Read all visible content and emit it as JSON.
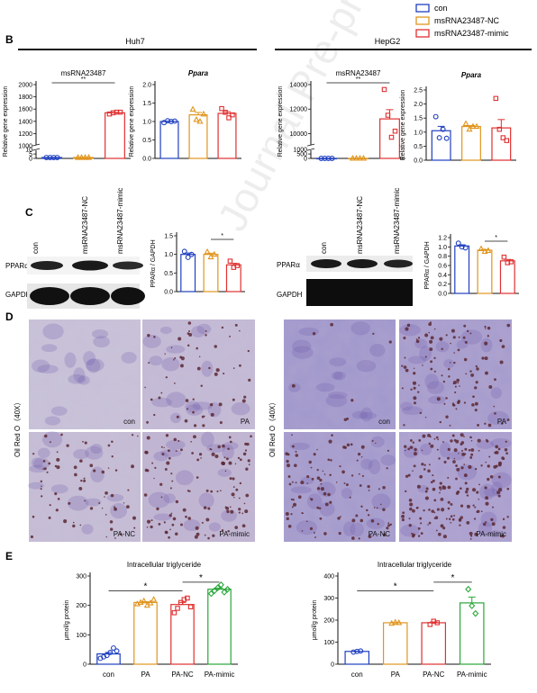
{
  "legend": {
    "items": [
      {
        "label": "con",
        "color": "#1f3fbf"
      },
      {
        "label": "msRNA23487-NC",
        "color": "#e0951f"
      },
      {
        "label": "msRNA23487-mimic",
        "color": "#e03030"
      }
    ]
  },
  "panel_b": {
    "letter": "B",
    "cell_left": "Huh7",
    "cell_right": "HepG2"
  },
  "panel_c": {
    "letter": "C",
    "lane_labels": [
      "con",
      "msRNA23487-NC",
      "msRNA23487-mimic"
    ],
    "protein_label": "PPARα",
    "loading_label": "GAPDH"
  },
  "panel_d": {
    "letter": "D",
    "side_label": "Oil Red O（40X）",
    "image_labels": [
      "con",
      "PA",
      "PA-NC",
      "PA-mimic"
    ]
  },
  "panel_e": {
    "letter": "E"
  },
  "watermark": "Journal Pre-proof",
  "chart_data": [
    {
      "type": "bar",
      "panel": "B-Huh7-msRNA23487",
      "title": "msRNA23487",
      "ylabel": "Relative gene expression",
      "categories": [
        "con",
        "msRNA23487-NC",
        "msRNA23487-mimic"
      ],
      "values": [
        1,
        1,
        1540
      ],
      "points": [
        [
          1,
          1,
          1,
          1
        ],
        [
          1,
          1,
          1,
          1
        ],
        [
          1520,
          1540,
          1550,
          1550
        ]
      ],
      "yticks": [
        "0",
        "5",
        "10",
        "1000",
        "1200",
        "1400",
        "1600",
        "1800",
        "2000"
      ],
      "axis_break": [
        10,
        1000
      ],
      "significance": "**"
    },
    {
      "type": "bar",
      "panel": "B-Huh7-Ppara",
      "title": "Ppara",
      "ylabel": "Relative gene expression",
      "categories": [
        "con",
        "msRNA23487-NC",
        "msRNA23487-mimic"
      ],
      "values": [
        1.0,
        1.18,
        1.22
      ],
      "points": [
        [
          0.97,
          1.02,
          1.0,
          1.01
        ],
        [
          1.33,
          1.05,
          1.0,
          1.2
        ],
        [
          1.35,
          1.25,
          1.1,
          1.18
        ]
      ],
      "yticks": [
        "0.0",
        "0.5",
        "1.0",
        "1.5",
        "2.0"
      ],
      "ylim": [
        0,
        2.0
      ]
    },
    {
      "type": "bar",
      "panel": "B-HepG2-msRNA23487",
      "title": "msRNA23487",
      "ylabel": "Relative gene expression",
      "categories": [
        "con",
        "msRNA23487-NC",
        "msRNA23487-mimic"
      ],
      "values": [
        1,
        1,
        11200
      ],
      "points": [
        [
          1,
          1,
          1,
          1
        ],
        [
          1,
          1,
          1,
          1
        ],
        [
          13600,
          11500,
          9700,
          10200
        ]
      ],
      "yticks": [
        "0",
        "500",
        "1000",
        "10000",
        "12000",
        "14000"
      ],
      "axis_break": [
        1000,
        9000
      ],
      "significance": "**"
    },
    {
      "type": "bar",
      "panel": "B-HepG2-Ppara",
      "title": "Ppara",
      "ylabel": "Relative gene expression",
      "categories": [
        "con",
        "msRNA23487-NC",
        "msRNA23487-mimic"
      ],
      "values": [
        1.05,
        1.2,
        1.15
      ],
      "points": [
        [
          1.55,
          0.8,
          1.1,
          0.78
        ],
        [
          1.3,
          1.1,
          1.2,
          1.2
        ],
        [
          2.2,
          1.1,
          0.8,
          0.7
        ]
      ],
      "yticks": [
        "0.0",
        "0.5",
        "1.0",
        "1.5",
        "2.0",
        "2.5"
      ],
      "ylim": [
        0,
        2.5
      ]
    },
    {
      "type": "bar",
      "panel": "C-Huh7-PPARa",
      "ylabel": "PPARα / GAPDH",
      "categories": [
        "con",
        "msRNA23487-NC",
        "msRNA23487-mimic"
      ],
      "values": [
        1.0,
        1.0,
        0.72
      ],
      "points": [
        [
          1.08,
          0.92,
          1.0
        ],
        [
          1.07,
          0.93,
          1.0
        ],
        [
          0.82,
          0.65,
          0.7
        ]
      ],
      "yticks": [
        "0.0",
        "0.5",
        "1.0",
        "1.5"
      ],
      "ylim": [
        0,
        1.5
      ],
      "significance": "*"
    },
    {
      "type": "bar",
      "panel": "C-HepG2-PPARa",
      "ylabel": "PPARα / GAPDH",
      "categories": [
        "con",
        "msRNA23487-NC",
        "msRNA23487-mimic"
      ],
      "values": [
        1.02,
        0.93,
        0.7
      ],
      "points": [
        [
          1.08,
          1.0,
          0.98
        ],
        [
          0.96,
          0.9,
          0.92
        ],
        [
          0.78,
          0.66,
          0.68
        ]
      ],
      "yticks": [
        "0.0",
        "0.2",
        "0.4",
        "0.6",
        "0.8",
        "1.0",
        "1.2"
      ],
      "ylim": [
        0,
        1.2
      ],
      "significance": "*"
    },
    {
      "type": "bar",
      "panel": "E-Huh7",
      "title": "Intracellular triglyceride",
      "ylabel": "μmol/g protein",
      "categories": [
        "con",
        "PA",
        "PA-NC",
        "PA-mimic"
      ],
      "values": [
        35,
        210,
        203,
        255
      ],
      "points": [
        [
          20,
          25,
          30,
          40,
          55,
          45
        ],
        [
          205,
          210,
          215,
          200,
          208,
          220
        ],
        [
          175,
          190,
          210,
          220,
          225,
          195
        ],
        [
          240,
          250,
          260,
          270,
          245,
          255
        ]
      ],
      "yticks": [
        "0",
        "100",
        "200",
        "300"
      ],
      "ylim": [
        0,
        300
      ],
      "significance": [
        "*",
        "*"
      ]
    },
    {
      "type": "bar",
      "panel": "E-HepG2",
      "title": "Intracellular triglyceride",
      "ylabel": "μmol/g protein",
      "categories": [
        "con",
        "PA",
        "PA-NC",
        "PA-mimic"
      ],
      "values": [
        58,
        188,
        188,
        278
      ],
      "points": [
        [
          55,
          58,
          60
        ],
        [
          185,
          190,
          188
        ],
        [
          180,
          195,
          188
        ],
        [
          340,
          265,
          230
        ]
      ],
      "yticks": [
        "0",
        "100",
        "200",
        "300",
        "400"
      ],
      "ylim": [
        0,
        400
      ],
      "significance": [
        "*",
        "*"
      ]
    }
  ]
}
